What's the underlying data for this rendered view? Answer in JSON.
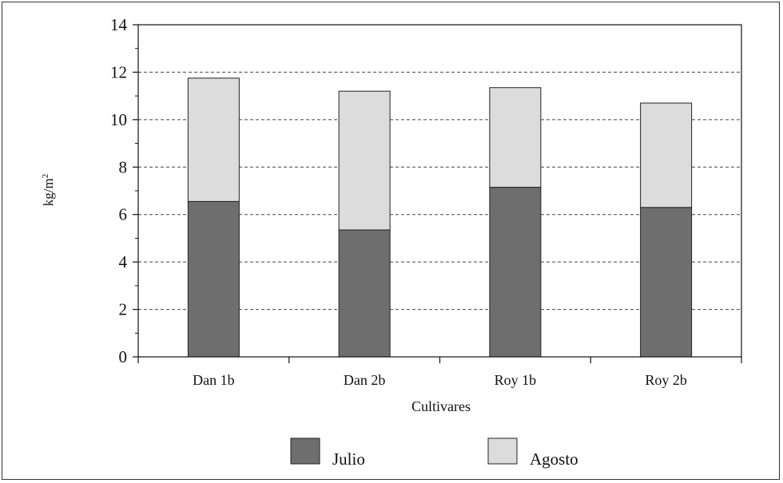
{
  "chart_data": {
    "type": "bar",
    "stacked": true,
    "categories": [
      "Dan 1b",
      "Dan 2b",
      "Roy 1b",
      "Roy 2b"
    ],
    "series": [
      {
        "name": "Julio",
        "values": [
          6.55,
          5.35,
          7.15,
          6.3
        ],
        "color": "#6e6e6e"
      },
      {
        "name": "Agosto",
        "values": [
          5.2,
          5.85,
          4.2,
          4.4
        ],
        "color": "#dcdcdc"
      }
    ],
    "xlabel": "Cultivares",
    "ylabel_base": "kg/m",
    "ylabel_sup": "2",
    "ylim": [
      0,
      14
    ],
    "yticks": [
      "0",
      "2",
      "4",
      "6",
      "8",
      "10",
      "12",
      "14"
    ],
    "grid": true,
    "legend_position": "bottom"
  }
}
